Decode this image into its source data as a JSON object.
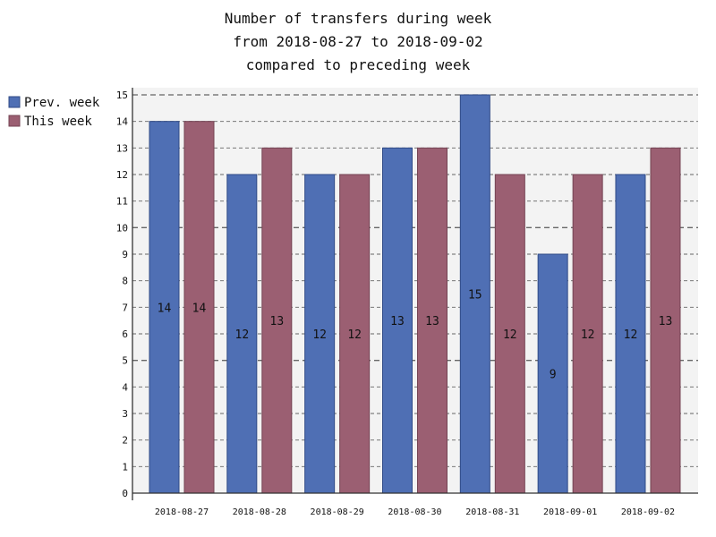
{
  "chart_data": {
    "type": "bar",
    "title_lines": [
      "Number of transfers during week",
      "from 2018-08-27 to 2018-09-02",
      "compared to preceding week"
    ],
    "categories": [
      "2018-08-27",
      "2018-08-28",
      "2018-08-29",
      "2018-08-30",
      "2018-08-31",
      "2018-09-01",
      "2018-09-02"
    ],
    "series": [
      {
        "name": "Prev. week",
        "color": "#4f6fb4",
        "values": [
          14,
          12,
          12,
          13,
          15,
          9,
          12
        ]
      },
      {
        "name": "This week",
        "color": "#9b5f72",
        "values": [
          14,
          13,
          12,
          13,
          12,
          12,
          13
        ]
      }
    ],
    "ylim": [
      0,
      15
    ],
    "yticks": [
      0,
      1,
      2,
      3,
      4,
      5,
      6,
      7,
      8,
      9,
      10,
      11,
      12,
      13,
      14,
      15
    ],
    "major_gridlines": [
      5,
      10,
      15
    ],
    "grid": true,
    "legend_position": "top-left",
    "data_labels": true,
    "colors": {
      "plot_background": "#f3f3f3",
      "grid": "#666666",
      "axis": "#333333",
      "text": "#111111"
    }
  }
}
